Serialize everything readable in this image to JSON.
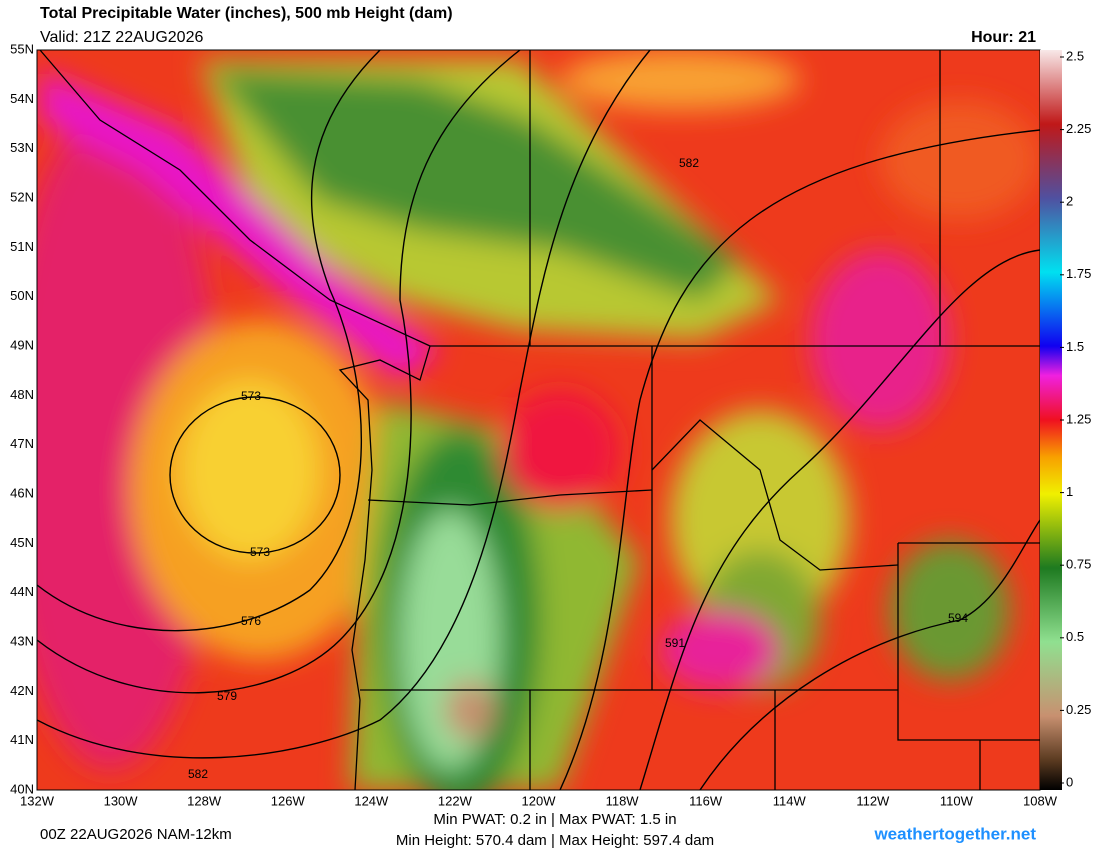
{
  "header": {
    "title": "Total Precipitable Water (inches), 500 mb Height (dam)",
    "valid": "Valid: 21Z 22AUG2026",
    "hour": "Hour: 21"
  },
  "axes": {
    "lat_labels": [
      "55N",
      "54N",
      "53N",
      "52N",
      "51N",
      "50N",
      "49N",
      "48N",
      "47N",
      "46N",
      "45N",
      "44N",
      "43N",
      "42N",
      "41N",
      "40N"
    ],
    "lon_labels": [
      "132W",
      "130W",
      "128W",
      "126W",
      "124W",
      "122W",
      "120W",
      "118W",
      "116W",
      "114W",
      "112W",
      "110W",
      "108W"
    ]
  },
  "colorbar": {
    "lim": [
      0,
      2.5
    ],
    "ticks": [
      0,
      0.25,
      0.5,
      0.75,
      1,
      1.25,
      1.5,
      1.75,
      2,
      2.25,
      2.5
    ]
  },
  "contours": [
    573,
    573,
    576,
    579,
    582,
    582,
    591,
    594
  ],
  "footer": {
    "run": "00Z 22AUG2026 NAM-12km",
    "pwat": "Min PWAT:   0.2 in | Max PWAT:   1.5 in",
    "height": "Min Height: 570.4 dam | Max Height: 597.4 dam",
    "site": "weathertogether.net"
  }
}
